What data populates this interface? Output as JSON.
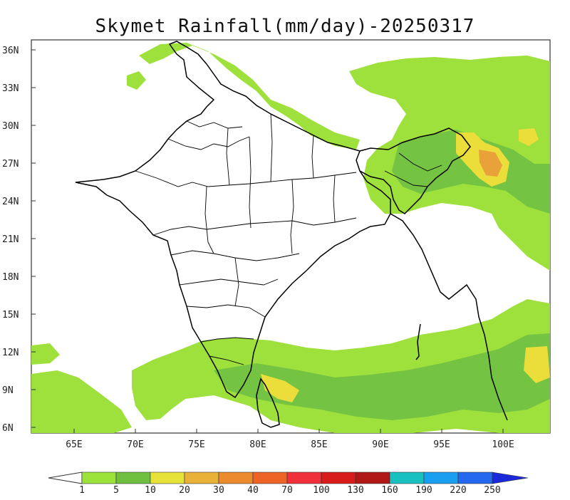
{
  "title": "Skymet Rainfall(mm/day)-20250317",
  "lat_ticks": [
    "36N",
    "33N",
    "30N",
    "27N",
    "24N",
    "21N",
    "18N",
    "15N",
    "12N",
    "9N",
    "6N"
  ],
  "lon_ticks": [
    "65E",
    "70E",
    "75E",
    "80E",
    "85E",
    "90E",
    "95E",
    "100E"
  ],
  "colorbar": {
    "labels": [
      "1",
      "5",
      "10",
      "20",
      "30",
      "40",
      "70",
      "100",
      "130",
      "160",
      "190",
      "220",
      "250"
    ],
    "colors": [
      "#9be33a",
      "#6fc040",
      "#e6e23a",
      "#e8b238",
      "#ec8a2e",
      "#ee6326",
      "#f0303a",
      "#d81c1c",
      "#b01818",
      "#18c0c0",
      "#1a9ef0",
      "#2468f0",
      "#1a2ad8"
    ]
  },
  "colors": {
    "light_green": "#9ee03c",
    "mid_green": "#74c342",
    "yellow": "#ecde3a",
    "orange": "#e9a13a",
    "border": "#000000"
  }
}
